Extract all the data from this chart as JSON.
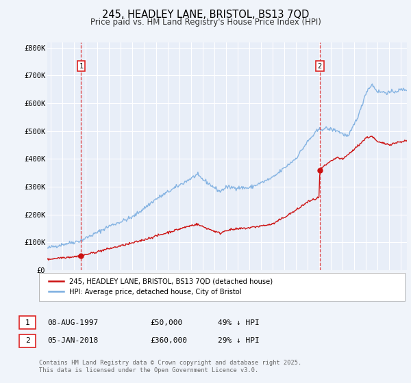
{
  "title": "245, HEADLEY LANE, BRISTOL, BS13 7QD",
  "subtitle": "Price paid vs. HM Land Registry's House Price Index (HPI)",
  "title_fontsize": 10.5,
  "subtitle_fontsize": 8.5,
  "bg_color": "#f0f4fa",
  "plot_bg_color": "#e8eef8",
  "grid_color": "#ffffff",
  "red_line_color": "#cc1111",
  "blue_line_color": "#7aade0",
  "vline_color": "#dd2222",
  "marker_color": "#cc1111",
  "legend_label_red": "245, HEADLEY LANE, BRISTOL, BS13 7QD (detached house)",
  "legend_label_blue": "HPI: Average price, detached house, City of Bristol",
  "annotation_footnote": "Contains HM Land Registry data © Crown copyright and database right 2025.\nThis data is licensed under the Open Government Licence v3.0.",
  "sale1_date_x": 1997.6,
  "sale1_label": "1",
  "sale1_price": 50000,
  "sale2_date_x": 2018.04,
  "sale2_label": "2",
  "sale2_price": 360000,
  "table_row1": [
    "1",
    "08-AUG-1997",
    "£50,000",
    "49% ↓ HPI"
  ],
  "table_row2": [
    "2",
    "05-JAN-2018",
    "£360,000",
    "29% ↓ HPI"
  ],
  "ylim": [
    0,
    820000
  ],
  "xlim_start": 1994.7,
  "xlim_end": 2025.5,
  "yticks": [
    0,
    100000,
    200000,
    300000,
    400000,
    500000,
    600000,
    700000,
    800000
  ],
  "ytick_labels": [
    "£0",
    "£100K",
    "£200K",
    "£300K",
    "£400K",
    "£500K",
    "£600K",
    "£700K",
    "£800K"
  ],
  "xticks": [
    1995,
    1996,
    1997,
    1998,
    1999,
    2000,
    2001,
    2002,
    2003,
    2004,
    2005,
    2006,
    2007,
    2008,
    2009,
    2010,
    2011,
    2012,
    2013,
    2014,
    2015,
    2016,
    2017,
    2018,
    2019,
    2020,
    2021,
    2022,
    2023,
    2024,
    2025
  ]
}
